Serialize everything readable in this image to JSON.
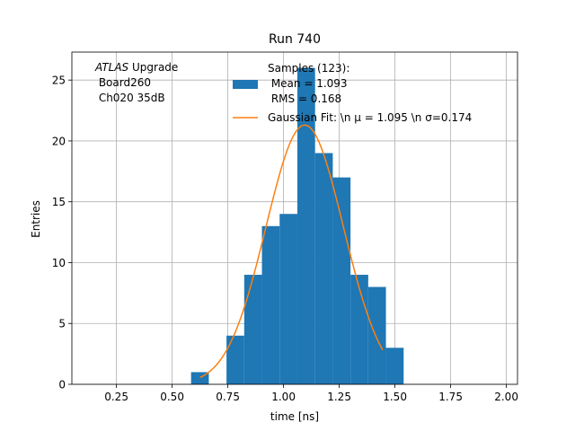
{
  "chart_data": {
    "type": "bar",
    "title": "Run 740",
    "xlabel": "time [ns]",
    "ylabel": "Entries",
    "xlim": [
      0.05,
      2.05
    ],
    "ylim": [
      0,
      27.3
    ],
    "grid": true,
    "x_ticks": [
      0.25,
      0.5,
      0.75,
      1.0,
      1.25,
      1.5,
      1.75,
      2.0
    ],
    "x_tick_labels": [
      "0.25",
      "0.50",
      "0.75",
      "1.00",
      "1.25",
      "1.50",
      "1.75",
      "2.00"
    ],
    "y_ticks": [
      0,
      5,
      10,
      15,
      20,
      25
    ],
    "y_tick_labels": [
      "0",
      "5",
      "10",
      "15",
      "20",
      "25"
    ],
    "histogram": {
      "color": "#1f77b4",
      "bin_edges": [
        0.585,
        0.6645,
        0.744,
        0.8235,
        0.903,
        0.9825,
        1.062,
        1.1415,
        1.221,
        1.3005,
        1.38,
        1.4595,
        1.539
      ],
      "counts": [
        1,
        0,
        4,
        9,
        13,
        14,
        26,
        19,
        17,
        9,
        8,
        3
      ],
      "legend_lines": [
        "Samples (123):",
        " Mean = 1.093",
        " RMS = 0.168"
      ]
    },
    "fit": {
      "type": "gaussian",
      "color": "#ff7f0e",
      "amplitude": 21.3,
      "mu": 1.095,
      "sigma": 0.174,
      "x_range": [
        0.625,
        1.445
      ],
      "legend_label": "Gaussian Fit: \\n μ = 1.095 \\n σ=0.174"
    },
    "legend_placement": "top-center",
    "annotation": {
      "line1_italic": "ATLAS",
      "line1_rest": " Upgrade",
      "line2": " Board260",
      "line3": " Ch020 35dB"
    }
  }
}
